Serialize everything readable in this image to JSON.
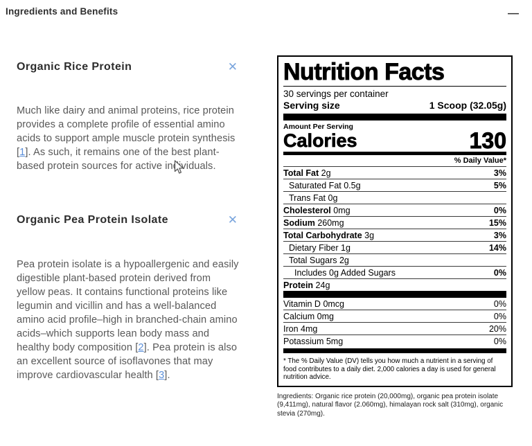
{
  "page": {
    "title": "Ingredients and Benefits"
  },
  "icons": {
    "minus-icon": "—",
    "close-icon": "✕"
  },
  "colors": {
    "link_blue": "#5b8fd9",
    "close_icon_blue": "#7aa5dd",
    "heading_dark": "#2d2d2d",
    "body_gray": "#585858"
  },
  "sections": [
    {
      "title": "Organic Rice Protein",
      "paragraph": [
        {
          "t": "Much like dairy and animal proteins, rice protein provides a complete profile of essential amino acids to support ample muscle protein synthesis ["
        },
        {
          "t": "1",
          "link": true
        },
        {
          "t": "]. As such, it remains one of the best plant-based protein sources for active individuals."
        }
      ]
    },
    {
      "title": "Organic Pea Protein Isolate",
      "paragraph": [
        {
          "t": "Pea protein isolate is a hypoallergenic and easily digestible plant-based protein derived from yellow peas. It contains functional proteins like legumin and vicillin and has a well-balanced amino acid profile–high in branched-chain amino acids–which supports lean body mass and healthy body composition ["
        },
        {
          "t": "2",
          "link": true
        },
        {
          "t": "]. Pea protein is also an excellent source of isoflavones that may improve cardiovascular health ["
        },
        {
          "t": "3",
          "link": true
        },
        {
          "t": "]."
        }
      ]
    }
  ],
  "nutrition": {
    "title": "Nutrition Facts",
    "servings_per_container": "30 servings per container",
    "serving_size_label": "Serving size",
    "serving_size_value": "1 Scoop (32.05g)",
    "amount_per_serving": "Amount Per Serving",
    "calories_label": "Calories",
    "calories_value": "130",
    "daily_value_header": "% Daily Value*",
    "macro_rows": [
      {
        "name": "Total Fat",
        "amount": "2g",
        "dv": "3%",
        "bold": true,
        "indent": 0
      },
      {
        "name": "Saturated Fat",
        "amount": "0.5g",
        "dv": "5%",
        "bold": false,
        "indent": 1
      },
      {
        "name": "Trans Fat",
        "amount": "0g",
        "dv": "",
        "bold": false,
        "indent": 1
      },
      {
        "name": "Cholesterol",
        "amount": "0mg",
        "dv": "0%",
        "bold": true,
        "indent": 0
      },
      {
        "name": "Sodium",
        "amount": "260mg",
        "dv": "15%",
        "bold": true,
        "indent": 0
      },
      {
        "name": "Total Carbohydrate",
        "amount": "3g",
        "dv": "3%",
        "bold": true,
        "indent": 0
      },
      {
        "name": "Dietary Fiber",
        "amount": "1g",
        "dv": "14%",
        "bold": false,
        "indent": 1
      },
      {
        "name": "Total Sugars",
        "amount": "2g",
        "dv": "",
        "bold": false,
        "indent": 1
      },
      {
        "name": "Includes 0g Added Sugars",
        "amount": "",
        "dv": "0%",
        "bold": false,
        "indent": 2
      },
      {
        "name": "Protein",
        "amount": "24g",
        "dv": "",
        "bold": true,
        "indent": 0
      }
    ],
    "micro_rows": [
      {
        "name": "Vitamin D",
        "amount": "0mcg",
        "dv": "0%",
        "bold": false,
        "indent": 0
      },
      {
        "name": "Calcium",
        "amount": "0mg",
        "dv": "0%",
        "bold": false,
        "indent": 0
      },
      {
        "name": "Iron",
        "amount": "4mg",
        "dv": "20%",
        "bold": false,
        "indent": 0
      },
      {
        "name": "Potassium",
        "amount": "5mg",
        "dv": "0%",
        "bold": false,
        "indent": 0
      }
    ],
    "footnote": "* The % Daily Value (DV) tells you how much a nutrient in a serving of food contributes to a daily diet. 2,000 calories a day is used for general nutrition advice.",
    "ingredients": "Ingredients: Organic rice protein (20,000mg), organic pea protein isolate (9,411mg), natural flavor (2.060mg), himalayan rock salt (310mg), organic stevia (270mg)."
  }
}
